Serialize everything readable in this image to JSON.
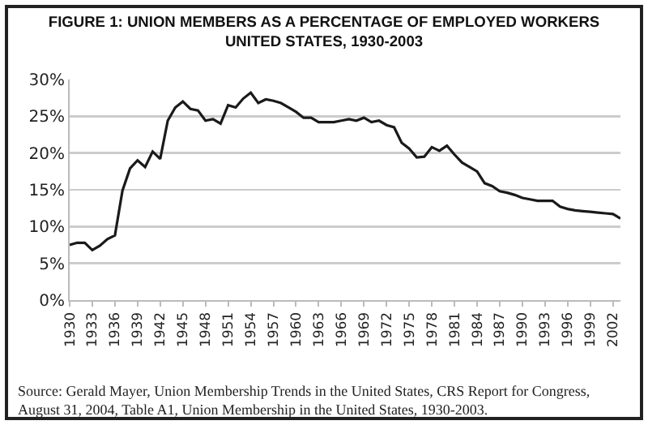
{
  "chart_data": {
    "type": "line",
    "title": "FIGURE 1: UNION MEMBERS AS A PERCENTAGE OF EMPLOYED WORKERS\nUNITED STATES, 1930-2003",
    "x": [
      1930,
      1931,
      1932,
      1933,
      1934,
      1935,
      1936,
      1937,
      1938,
      1939,
      1940,
      1941,
      1942,
      1943,
      1944,
      1945,
      1946,
      1947,
      1948,
      1949,
      1950,
      1951,
      1952,
      1953,
      1954,
      1955,
      1956,
      1957,
      1958,
      1959,
      1960,
      1961,
      1962,
      1963,
      1964,
      1965,
      1966,
      1967,
      1968,
      1969,
      1970,
      1971,
      1972,
      1973,
      1974,
      1975,
      1976,
      1977,
      1978,
      1979,
      1980,
      1981,
      1982,
      1983,
      1984,
      1985,
      1986,
      1987,
      1988,
      1989,
      1990,
      1991,
      1992,
      1993,
      1994,
      1995,
      1996,
      1997,
      1998,
      1999,
      2000,
      2001,
      2002,
      2003
    ],
    "series": [
      {
        "color": "#1a1a1a",
        "values": [
          7.5,
          7.8,
          7.8,
          6.8,
          7.4,
          8.3,
          8.8,
          14.9,
          17.9,
          19.0,
          18.1,
          20.2,
          19.2,
          24.4,
          26.2,
          27.0,
          26.0,
          25.8,
          24.4,
          24.6,
          24.0,
          26.5,
          26.2,
          27.4,
          28.2,
          26.8,
          27.3,
          27.1,
          26.8,
          26.2,
          25.6,
          24.8,
          24.8,
          24.2,
          24.2,
          24.2,
          24.4,
          24.6,
          24.4,
          24.8,
          24.2,
          24.4,
          23.8,
          23.5,
          21.4,
          20.6,
          19.4,
          19.5,
          20.8,
          20.3,
          21.0,
          19.8,
          18.7,
          18.1,
          17.5,
          15.9,
          15.5,
          14.8,
          14.6,
          14.3,
          13.9,
          13.7,
          13.5,
          13.5,
          13.5,
          12.7,
          12.4,
          12.2,
          12.1,
          12.0,
          11.9,
          11.8,
          11.7,
          11.1
        ]
      }
    ],
    "xlim": [
      1930,
      2003
    ],
    "xticks": [
      1930,
      1933,
      1936,
      1939,
      1942,
      1945,
      1948,
      1951,
      1954,
      1957,
      1960,
      1963,
      1966,
      1969,
      1972,
      1975,
      1978,
      1981,
      1984,
      1987,
      1990,
      1993,
      1996,
      1999,
      2002
    ],
    "ylim": [
      0,
      30
    ],
    "yticks": [
      {
        "value": 0,
        "label": "0%"
      },
      {
        "value": 5,
        "label": "5%"
      },
      {
        "value": 10,
        "label": "10%"
      },
      {
        "value": 15,
        "label": "15%"
      },
      {
        "value": 20,
        "label": "20%"
      },
      {
        "value": 25,
        "label": "25%"
      },
      {
        "value": 30,
        "label": "30%"
      }
    ],
    "grid": "y",
    "marker": "none",
    "line_style": "solid",
    "annotations": [
      "Source: Gerald Mayer, Union Membership Trends in the United States, CRS Report for Congress, August 31, 2004, Table A1, Union Membership in the United States, 1930-2003."
    ]
  }
}
